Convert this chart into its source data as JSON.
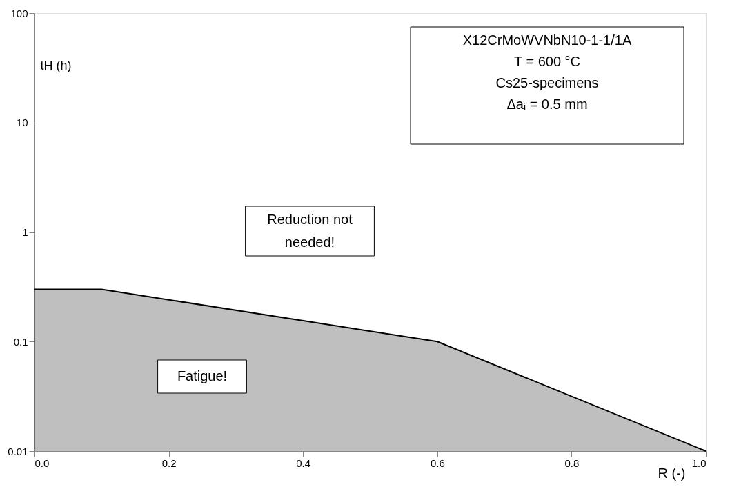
{
  "chart_data": {
    "type": "area",
    "xlabel": "R (-)",
    "ylabel": "tH (h)",
    "x": [
      0.0,
      0.1,
      0.6,
      1.0
    ],
    "series": [
      {
        "color": "#000000",
        "values": [
          0.3,
          0.3,
          0.1,
          0.01
        ]
      }
    ],
    "log": "y",
    "xlim": [
      0.0,
      1.0
    ],
    "ylim": [
      0.01,
      100
    ],
    "xticks": [
      {
        "value": 0,
        "label": "0.0"
      },
      0.2,
      0.4,
      0.6,
      0.8,
      {
        "value": 1,
        "label": "1.0"
      }
    ],
    "yticks": [
      0.01,
      0.1,
      1,
      10,
      100
    ],
    "grid": false,
    "annotations": [
      "X12CrMoWVNbN10-1-1/1A\nT = 600 °C\nCs25-specimens\nΔaᵢ = 0.5 mm",
      "Reduction not needed!",
      "Fatigue!"
    ]
  }
}
